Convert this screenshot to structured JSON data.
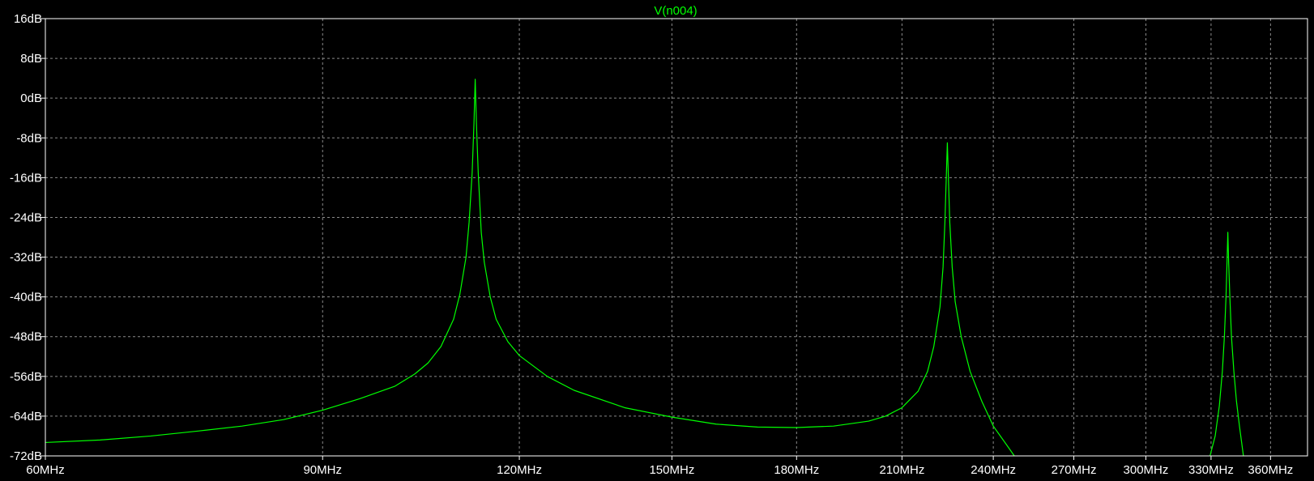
{
  "chart_data": {
    "type": "line",
    "title": "V(n004)",
    "xlabel": "",
    "ylabel": "",
    "x_ticks": [
      "60MHz",
      "90MHz",
      "120MHz",
      "150MHz",
      "180MHz",
      "210MHz",
      "240MHz",
      "270MHz",
      "300MHz",
      "330MHz",
      "360MHz"
    ],
    "x_tick_values_mhz": [
      60,
      90,
      120,
      150,
      180,
      210,
      240,
      270,
      300,
      330,
      360
    ],
    "x_scale": "log",
    "xlim_mhz": [
      60,
      380
    ],
    "y_ticks": [
      "16dB",
      "8dB",
      "0dB",
      "-8dB",
      "-16dB",
      "-24dB",
      "-32dB",
      "-40dB",
      "-48dB",
      "-56dB",
      "-64dB",
      "-72dB"
    ],
    "y_tick_values_db": [
      16,
      8,
      0,
      -8,
      -16,
      -24,
      -32,
      -40,
      -48,
      -56,
      -64,
      -72
    ],
    "ylim_db": [
      -72,
      16
    ],
    "grid": true,
    "colors": {
      "trace": "#00ff00",
      "title": "#00ff00",
      "background": "#000000",
      "grid": "#8a8a8a",
      "frame": "#ffffff",
      "text": "#ffffff"
    },
    "series": [
      {
        "name": "V(n004)",
        "segments": [
          [
            [
              60,
              -69.3
            ],
            [
              65,
              -68.8
            ],
            [
              70,
              -68.0
            ],
            [
              75,
              -67.0
            ],
            [
              80,
              -66.0
            ],
            [
              85,
              -64.7
            ],
            [
              90,
              -62.8
            ],
            [
              95,
              -60.5
            ],
            [
              100,
              -58.0
            ],
            [
              103,
              -55.5
            ],
            [
              105,
              -53.3
            ],
            [
              107,
              -50.0
            ],
            [
              109,
              -44.5
            ],
            [
              110,
              -39.5
            ],
            [
              111,
              -32.0
            ],
            [
              111.5,
              -25.0
            ],
            [
              112,
              -15.0
            ],
            [
              112.3,
              -5.0
            ],
            [
              112.5,
              3.8
            ],
            [
              112.7,
              -5.0
            ],
            [
              113,
              -15.0
            ],
            [
              113.5,
              -27.0
            ],
            [
              114,
              -33.0
            ],
            [
              115,
              -40.0
            ],
            [
              116,
              -44.5
            ],
            [
              118,
              -49.0
            ],
            [
              120,
              -51.8
            ],
            [
              125,
              -56.0
            ],
            [
              130,
              -58.8
            ],
            [
              140,
              -62.3
            ],
            [
              150,
              -64.2
            ],
            [
              160,
              -65.6
            ],
            [
              170,
              -66.2
            ],
            [
              180,
              -66.3
            ],
            [
              190,
              -66.0
            ],
            [
              200,
              -65.0
            ],
            [
              205,
              -64.0
            ],
            [
              210,
              -62.3
            ],
            [
              215,
              -59.0
            ],
            [
              218,
              -55.0
            ],
            [
              220,
              -50.0
            ],
            [
              222,
              -42.0
            ],
            [
              223,
              -34.0
            ],
            [
              223.6,
              -25.0
            ],
            [
              224.1,
              -15.0
            ],
            [
              224.4,
              -9.0
            ],
            [
              224.7,
              -15.0
            ],
            [
              225.2,
              -25.0
            ],
            [
              226,
              -34.0
            ],
            [
              227,
              -41.0
            ],
            [
              229,
              -48.0
            ],
            [
              232,
              -55.0
            ],
            [
              236,
              -61.0
            ],
            [
              240,
              -66.0
            ],
            [
              245,
              -70.0
            ],
            [
              247.5,
              -72.0
            ]
          ],
          [
            [
              329.5,
              -72.0
            ],
            [
              332,
              -68.0
            ],
            [
              334,
              -62.0
            ],
            [
              335.5,
              -55.0
            ],
            [
              336.5,
              -48.0
            ],
            [
              337.3,
              -40.0
            ],
            [
              337.8,
              -33.0
            ],
            [
              338.2,
              -27.0
            ],
            [
              338.6,
              -33.0
            ],
            [
              339.2,
              -40.0
            ],
            [
              340,
              -48.0
            ],
            [
              341.2,
              -55.0
            ],
            [
              342.5,
              -61.0
            ],
            [
              344,
              -66.0
            ],
            [
              346,
              -72.0
            ]
          ]
        ]
      }
    ]
  }
}
